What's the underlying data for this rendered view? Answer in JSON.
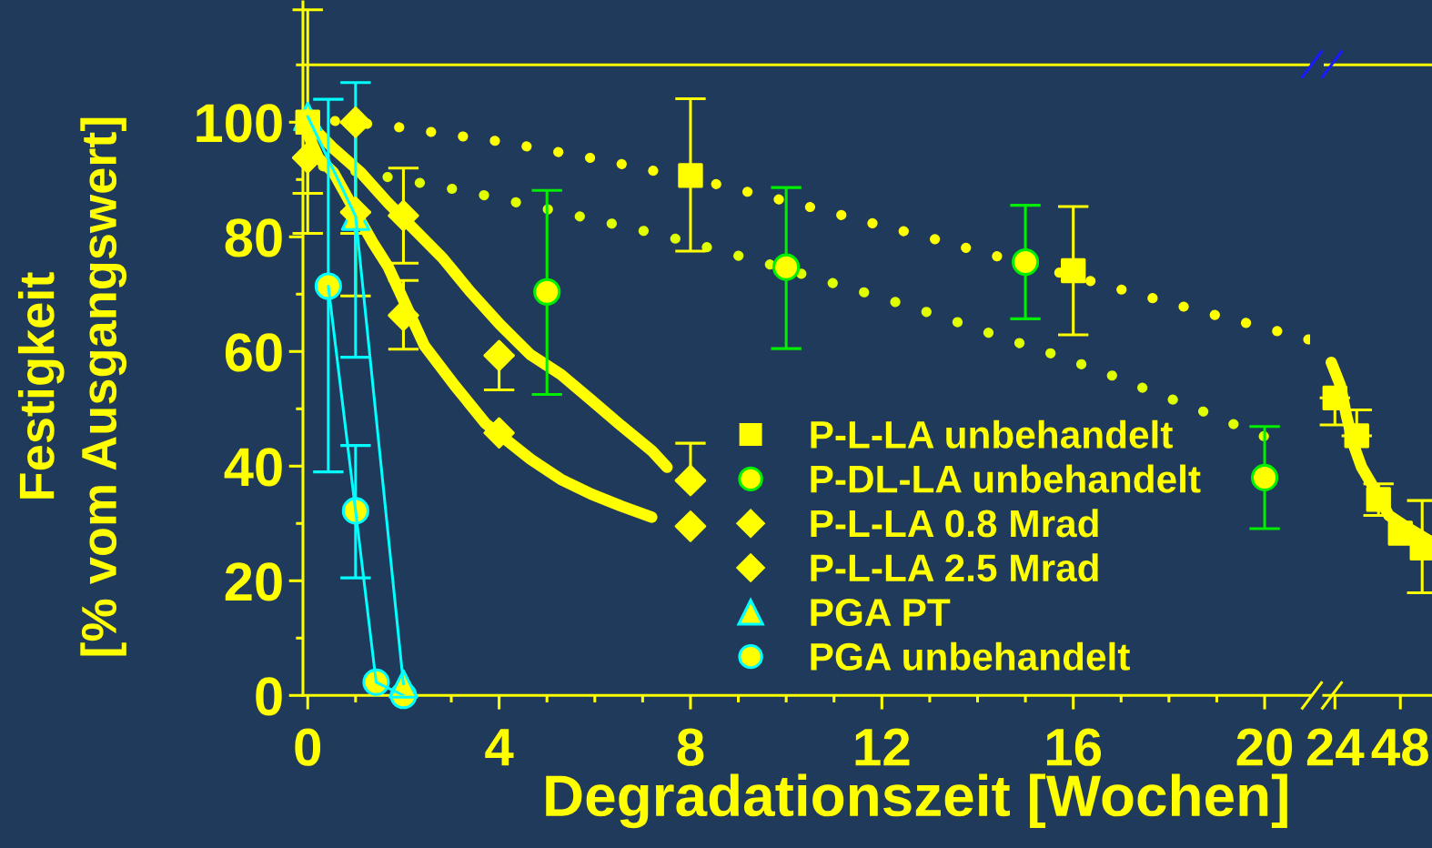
{
  "chart_data": [
    {
      "type": "scatter",
      "xlabel": "Degradationszeit [Wochen]",
      "ylabel": "Festigkeit\n[% vom Ausgangswert]",
      "xlim": [
        -0.1,
        20.95
      ],
      "xticks": [
        0,
        {
          "value": 1,
          "label": null
        },
        {
          "value": 2,
          "label": null
        },
        {
          "value": 3,
          "label": null
        },
        4,
        {
          "value": 5,
          "label": null
        },
        {
          "value": 6,
          "label": null
        },
        {
          "value": 7,
          "label": null
        },
        8,
        {
          "value": 9,
          "label": null
        },
        {
          "value": 10,
          "label": null
        },
        {
          "value": 11,
          "label": null
        },
        12,
        {
          "value": 13,
          "label": null
        },
        {
          "value": 14,
          "label": null
        },
        {
          "value": 15,
          "label": null
        },
        16,
        {
          "value": 17,
          "label": null
        },
        {
          "value": 18,
          "label": null
        },
        {
          "value": 19,
          "label": null
        },
        20
      ],
      "ylim": [
        0,
        121
      ],
      "yticks": [
        0,
        {
          "value": 10,
          "label": null
        },
        20,
        {
          "value": 30,
          "label": null
        },
        40,
        {
          "value": 50,
          "label": null
        },
        60,
        {
          "value": 70,
          "label": null
        },
        80,
        {
          "value": 90,
          "label": null
        },
        100,
        {
          "value": 110,
          "label": null
        }
      ],
      "ref_lines": [
        {
          "axis": "y",
          "value": 110,
          "color": "#ffff00"
        }
      ],
      "legend": "bottom right",
      "series": [
        {
          "name": "P-L-LA unbehandelt",
          "marker": "square",
          "color": "#ffff00",
          "x": [
            0,
            8,
            16
          ],
          "values": [
            100,
            90.7,
            74.1
          ],
          "errors": [
            [
              80.6,
              119.6
            ],
            [
              77.5,
              104.1
            ],
            [
              62.9,
              85.3
            ]
          ]
        },
        {
          "name": "P-DL-LA unbehandelt",
          "marker": "circle",
          "color": "#00ee00",
          "colors": [
            "#ffff00",
            "#ffff00",
            "#ffff00",
            "#ffff00"
          ],
          "x": [
            5,
            10,
            15,
            20
          ],
          "values": [
            70.4,
            74.7,
            75.6,
            38.0
          ],
          "errors": [
            [
              52.5,
              88.1
            ],
            [
              60.5,
              88.6
            ],
            [
              65.7,
              85.5
            ],
            [
              29.1,
              46.9
            ]
          ]
        },
        {
          "name": "P-L-LA 0.8 Mrad",
          "marker": "diamond",
          "color": "#ffff00",
          "x": [
            1,
            2,
            4,
            8
          ],
          "values": [
            100,
            83.7,
            59.3,
            37.5
          ],
          "errors": [
            [
              80.6,
              100
            ],
            [
              75.4,
              92.0
            ],
            [
              53.3,
              59.3
            ],
            [
              37.5,
              44.0
            ]
          ]
        },
        {
          "name": "P-L-LA 2.5 Mrad",
          "marker": "diamond",
          "color": "#ffff00",
          "x": [
            0,
            1,
            2,
            4,
            8
          ],
          "values": [
            93.8,
            84.3,
            66.3,
            45.8,
            29.5
          ],
          "errors": [
            [
              87.6,
              93.8
            ],
            [
              69.7,
              84.3
            ],
            [
              60.4,
              72.4
            ],
            null,
            null
          ]
        },
        {
          "name": "PGA PT",
          "type": "line",
          "marker": "triangle",
          "color": "#00ffff",
          "colors": [
            "#ffff00",
            "#ffff00",
            "#ffff00"
          ],
          "x": [
            0,
            1,
            2
          ],
          "values": [
            101,
            83.6,
            2.0
          ],
          "errors": [
            null,
            [
              59,
              106.9
            ],
            null
          ]
        },
        {
          "name": "PGA unbehandelt",
          "type": "line",
          "marker": "circle",
          "color": "#00ffff",
          "colors": [
            "#ffff00",
            "#ffff00",
            "#ffff00",
            "#ffff00"
          ],
          "x": [
            0.43,
            1,
            1.43,
            2
          ],
          "values": [
            71.4,
            32.2,
            2.3,
            0
          ],
          "errors": [
            [
              39,
              104
            ],
            [
              20.5,
              43.6
            ],
            null,
            null
          ]
        },
        {
          "type": "line",
          "line_style": "dotted",
          "color": "#ffff00",
          "x": [
            0.57,
            1.68,
            2.82,
            3.96,
            5.1,
            6.22,
            7.35,
            8.49,
            9.61,
            10.75,
            11.88,
            13.02,
            14.14,
            15.29,
            16.4,
            17.53,
            18.67,
            19.79,
            20.92
          ],
          "values": [
            100.2,
            99.4,
            98.0,
            96.7,
            95.0,
            93.3,
            91.3,
            89.3,
            87.0,
            84.7,
            82.2,
            79.8,
            77.2,
            74.7,
            72.2,
            69.6,
            67.0,
            64.6,
            62.1
          ]
        },
        {
          "type": "line",
          "line_style": "dotted",
          "color": "#e0ff00",
          "x": [
            0.32,
            1.02,
            2.03,
            3.39,
            4.75,
            6.1,
            7.46,
            8.47,
            9.49,
            10.5,
            11.52,
            12.53,
            13.55,
            14.57,
            15.59,
            16.6,
            17.62,
            18.64,
            19.65,
            19.99
          ],
          "values": [
            92.3,
            91.4,
            89.9,
            87.8,
            85.3,
            82.8,
            80.2,
            77.9,
            75.6,
            73.1,
            70.6,
            68.0,
            65.2,
            62.3,
            59.5,
            56.5,
            53.1,
            49.8,
            46.3,
            45.2
          ]
        },
        {
          "type": "line",
          "line_style": "solid",
          "color": "#ffff00",
          "x": [
            0,
            0.54,
            1.11,
            1.68,
            2.25,
            2.82,
            3.39,
            4.02,
            4.66,
            5.29,
            5.93,
            6.56,
            7.19,
            7.51
          ],
          "values": [
            100,
            95.4,
            91.2,
            85.9,
            81.1,
            76.3,
            70.5,
            64.7,
            59.4,
            56.0,
            51.5,
            47.0,
            42.7,
            39.8
          ]
        },
        {
          "type": "line",
          "line_style": "solid",
          "color": "#ffff00",
          "x": [
            0,
            0.22,
            0.54,
            1,
            1.36,
            1.68,
            2,
            2.44,
            3.07,
            3.71,
            4.66,
            5.29,
            5.93,
            6.56,
            7.19
          ],
          "values": [
            98,
            93.8,
            91.2,
            84.3,
            79.0,
            74.8,
            69.0,
            61.0,
            54.1,
            47.5,
            41.2,
            37.7,
            35.1,
            33.0,
            31.1
          ]
        }
      ]
    },
    {
      "type": "scatter",
      "tick_labels": "x",
      "xlim": [
        19.9,
        59.6
      ],
      "xticks": [
        24,
        48
      ],
      "ylim": [
        0,
        121
      ],
      "ref_lines": [
        {
          "axis": "y",
          "value": 110,
          "color": "#ffff00"
        }
      ],
      "series": [
        {
          "marker": "square",
          "color": "#ffff00",
          "x": [
            24,
            32,
            40,
            48,
            56
          ],
          "values": [
            51.9,
            45.3,
            34.2,
            28.3,
            25.7
          ],
          "errors": [
            [
              47.2,
              51.9
            ],
            [
              45.3,
              49.8
            ],
            [
              31.4,
              36.9
            ],
            null,
            [
              17.9,
              34.0
            ]
          ]
        },
        {
          "type": "line",
          "line_style": "solid",
          "color": "#ffff00",
          "x": [
            22.67,
            26.0,
            28.23,
            31.0,
            33.8,
            37.67,
            43.8,
            50.47,
            58.23
          ],
          "values": [
            58.1,
            54.1,
            48.8,
            43.5,
            39.8,
            36.7,
            31.4,
            29.3,
            27.1
          ]
        }
      ]
    }
  ]
}
